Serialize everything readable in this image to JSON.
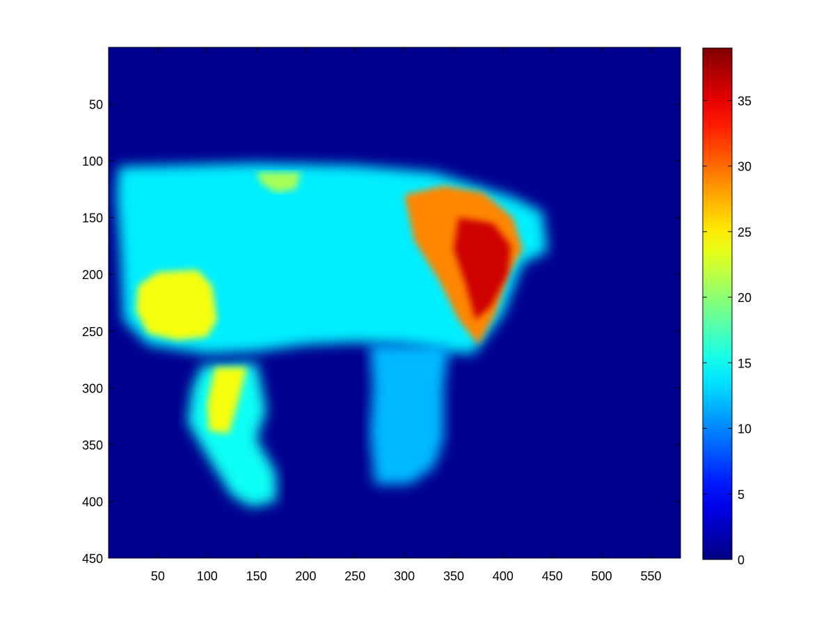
{
  "chart_data": {
    "type": "heatmap",
    "title": "",
    "xlabel": "",
    "ylabel": "",
    "xlim": [
      0,
      580
    ],
    "ylim": [
      0,
      450
    ],
    "y_direction": "reversed",
    "grid": false,
    "colormap": "jet",
    "x_ticks": [
      50,
      100,
      150,
      200,
      250,
      300,
      350,
      400,
      450,
      500,
      550
    ],
    "y_ticks": [
      50,
      100,
      150,
      200,
      250,
      300,
      350,
      400,
      450
    ],
    "colorbar": {
      "range": [
        0,
        39
      ],
      "ticks": [
        0,
        5,
        10,
        15,
        20,
        25,
        30,
        35
      ],
      "placement": "right"
    },
    "regions": [
      {
        "name": "body",
        "value": 14,
        "polygon": [
          [
            10,
            105
          ],
          [
            60,
            104
          ],
          [
            150,
            102
          ],
          [
            250,
            104
          ],
          [
            330,
            110
          ],
          [
            410,
            132
          ],
          [
            440,
            145
          ],
          [
            445,
            180
          ],
          [
            420,
            190
          ],
          [
            400,
            235
          ],
          [
            370,
            270
          ],
          [
            340,
            268
          ],
          [
            300,
            262
          ],
          [
            250,
            260
          ],
          [
            200,
            262
          ],
          [
            150,
            268
          ],
          [
            100,
            270
          ],
          [
            40,
            262
          ],
          [
            15,
            240
          ],
          [
            12,
            180
          ],
          [
            8,
            130
          ]
        ]
      },
      {
        "name": "hind-leg",
        "value": 15,
        "polygon": [
          [
            95,
            280
          ],
          [
            150,
            278
          ],
          [
            160,
            320
          ],
          [
            150,
            345
          ],
          [
            170,
            375
          ],
          [
            170,
            400
          ],
          [
            145,
            405
          ],
          [
            125,
            395
          ],
          [
            100,
            360
          ],
          [
            80,
            330
          ],
          [
            85,
            300
          ]
        ]
      },
      {
        "name": "front-leg",
        "value": 12,
        "polygon": [
          [
            265,
            262
          ],
          [
            345,
            262
          ],
          [
            340,
            300
          ],
          [
            340,
            345
          ],
          [
            330,
            370
          ],
          [
            305,
            385
          ],
          [
            270,
            385
          ],
          [
            265,
            340
          ],
          [
            268,
            300
          ]
        ]
      },
      {
        "name": "rear-patch",
        "value": 24,
        "polygon": [
          [
            30,
            210
          ],
          [
            50,
            198
          ],
          [
            90,
            196
          ],
          [
            105,
            210
          ],
          [
            110,
            240
          ],
          [
            100,
            255
          ],
          [
            70,
            258
          ],
          [
            40,
            252
          ],
          [
            28,
            232
          ]
        ]
      },
      {
        "name": "hind-leg-patch",
        "value": 24,
        "polygon": [
          [
            108,
            282
          ],
          [
            140,
            282
          ],
          [
            132,
            310
          ],
          [
            122,
            340
          ],
          [
            102,
            338
          ],
          [
            100,
            315
          ]
        ]
      },
      {
        "name": "back-patch",
        "value": 21,
        "polygon": [
          [
            150,
            110
          ],
          [
            195,
            110
          ],
          [
            190,
            125
          ],
          [
            170,
            128
          ],
          [
            155,
            120
          ]
        ]
      },
      {
        "name": "shoulder-outer",
        "value": 29,
        "polygon": [
          [
            300,
            130
          ],
          [
            340,
            122
          ],
          [
            380,
            128
          ],
          [
            410,
            150
          ],
          [
            420,
            178
          ],
          [
            405,
            200
          ],
          [
            392,
            235
          ],
          [
            375,
            262
          ],
          [
            355,
            240
          ],
          [
            335,
            205
          ],
          [
            310,
            170
          ]
        ]
      },
      {
        "name": "shoulder-core",
        "value": 36,
        "polygon": [
          [
            355,
            150
          ],
          [
            390,
            155
          ],
          [
            408,
            175
          ],
          [
            405,
            200
          ],
          [
            388,
            228
          ],
          [
            372,
            240
          ],
          [
            362,
            208
          ],
          [
            350,
            178
          ]
        ]
      }
    ]
  }
}
